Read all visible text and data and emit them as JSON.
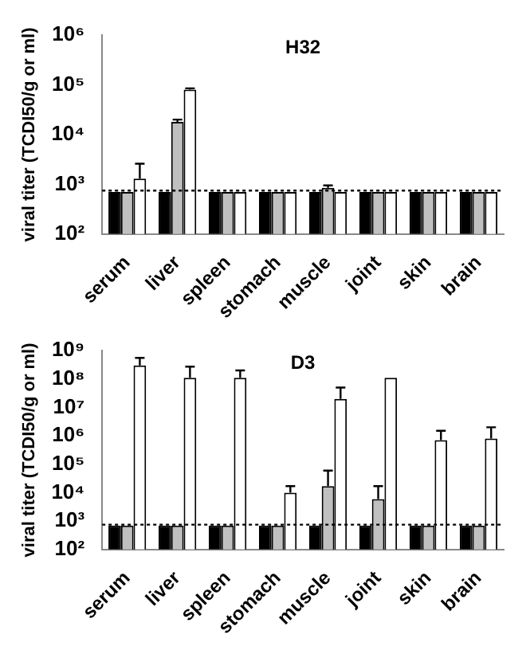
{
  "chart_data": [
    {
      "type": "bar",
      "title": "H32",
      "ylabel": "viral titer (TCDI50/g or ml)",
      "log": "y",
      "grid": false,
      "legend": false,
      "categories": [
        "serum",
        "liver",
        "spleen",
        "stomach",
        "muscle",
        "joint",
        "skin",
        "brain"
      ],
      "ylim": [
        100,
        1000000
      ],
      "yticks": [
        {
          "value": 100,
          "label": "10²"
        },
        {
          "value": 1000,
          "label": "10³"
        },
        {
          "value": 10000,
          "label": "10⁴"
        },
        {
          "value": 100000,
          "label": "10⁵"
        },
        {
          "value": 1000000,
          "label": "10⁶"
        }
      ],
      "ref_lines": [
        {
          "axis": "y",
          "value": 750,
          "line_style": "dotted",
          "color": "#000000"
        }
      ],
      "series": [
        {
          "color": "#000000",
          "values": [
            700,
            700,
            700,
            700,
            700,
            700,
            700,
            700
          ]
        },
        {
          "color": "#c0c0c0",
          "values": [
            700,
            18000,
            700,
            700,
            850,
            700,
            700,
            700
          ],
          "errors": [
            null,
            [
              18000,
              20000
            ],
            null,
            null,
            [
              850,
              950
            ],
            null,
            null,
            null
          ]
        },
        {
          "color": "#ffffff",
          "values": [
            1300,
            80000,
            700,
            700,
            700,
            700,
            700,
            700
          ],
          "errors": [
            [
              1300,
              2600
            ],
            [
              80000,
              85000
            ],
            null,
            null,
            null,
            null,
            null,
            null
          ]
        }
      ]
    },
    {
      "type": "bar",
      "title": "D3",
      "ylabel": "viral titer (TCDI50/g or ml)",
      "log": "y",
      "grid": false,
      "legend": false,
      "categories": [
        "serum",
        "liver",
        "spleen",
        "stomach",
        "muscle",
        "joint",
        "skin",
        "brain"
      ],
      "ylim": [
        100,
        1000000000
      ],
      "yticks": [
        {
          "value": 100,
          "label": "10²"
        },
        {
          "value": 1000,
          "label": "10³"
        },
        {
          "value": 10000,
          "label": "10⁴"
        },
        {
          "value": 100000,
          "label": "10⁵"
        },
        {
          "value": 1000000,
          "label": "10⁶"
        },
        {
          "value": 10000000,
          "label": "10⁷"
        },
        {
          "value": 100000000,
          "label": "10⁸"
        },
        {
          "value": 1000000000,
          "label": "10⁹"
        }
      ],
      "ref_lines": [
        {
          "axis": "y",
          "value": 750,
          "line_style": "dotted",
          "color": "#000000"
        }
      ],
      "series": [
        {
          "color": "#000000",
          "values": [
            700,
            700,
            700,
            700,
            700,
            700,
            700,
            700
          ]
        },
        {
          "color": "#c0c0c0",
          "values": [
            700,
            700,
            700,
            700,
            17000,
            6000,
            700,
            700
          ],
          "errors": [
            null,
            null,
            null,
            null,
            [
              17000,
              60000
            ],
            [
              6000,
              17000
            ],
            null,
            null
          ]
        },
        {
          "color": "#ffffff",
          "values": [
            300000000,
            110000000,
            110000000,
            10000,
            20000000,
            110000000,
            700000,
            800000
          ],
          "errors": [
            [
              300000000,
              550000000
            ],
            [
              110000000,
              270000000
            ],
            [
              110000000,
              200000000
            ],
            [
              10000,
              17000
            ],
            [
              20000000,
              50000000
            ],
            null,
            [
              700000,
              1500000
            ],
            [
              800000,
              2000000
            ]
          ]
        }
      ]
    }
  ]
}
